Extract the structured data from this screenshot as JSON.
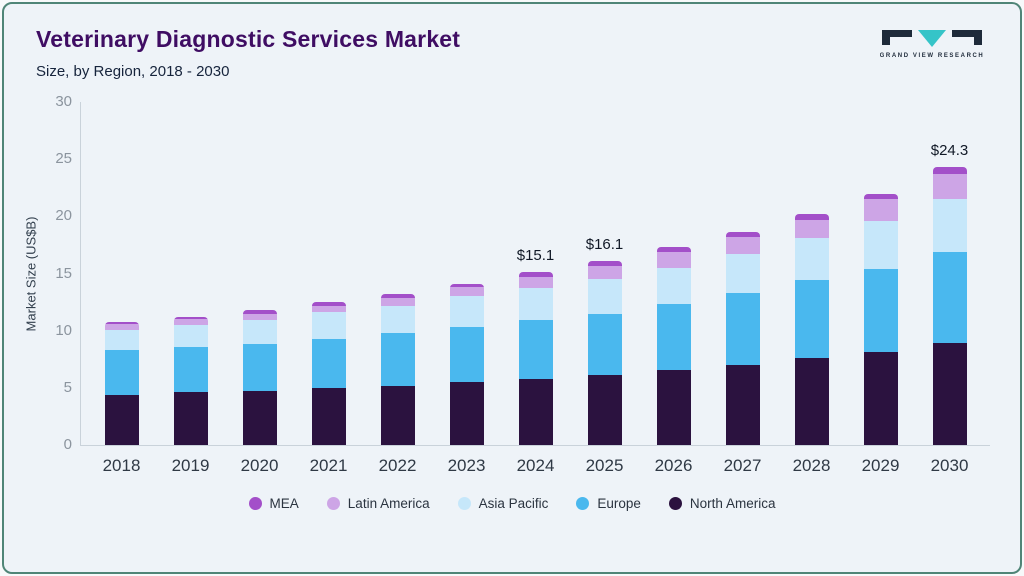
{
  "header": {
    "title": "Veterinary Diagnostic Services Market",
    "subtitle": "Size, by Region, 2018 - 2030",
    "logo_text": "GRAND VIEW RESEARCH"
  },
  "colors": {
    "frame_border": "#4f8577",
    "background": "#eef3f8",
    "title": "#3f0d63",
    "logo_dark": "#1e2a3a",
    "logo_teal": "#35c4c8"
  },
  "chart_data": {
    "type": "bar",
    "stacked": true,
    "title": "Veterinary Diagnostic Services Market",
    "subtitle": "Size, by Region, 2018 - 2030",
    "xlabel": "",
    "ylabel": "Market Size (US$B)",
    "ylim": [
      0,
      30
    ],
    "yticks": [
      0,
      5,
      10,
      15,
      20,
      25,
      30
    ],
    "grid": false,
    "legend_position": "bottom",
    "categories": [
      "2018",
      "2019",
      "2020",
      "2021",
      "2022",
      "2023",
      "2024",
      "2025",
      "2026",
      "2027",
      "2028",
      "2029",
      "2030"
    ],
    "series": [
      {
        "name": "North America",
        "color": "#2b123f",
        "values": [
          4.4,
          4.6,
          4.7,
          5.0,
          5.2,
          5.5,
          5.8,
          6.1,
          6.6,
          7.0,
          7.6,
          8.1,
          8.9
        ]
      },
      {
        "name": "Europe",
        "color": "#4ab8ee",
        "values": [
          3.9,
          4.0,
          4.1,
          4.3,
          4.6,
          4.8,
          5.1,
          5.4,
          5.7,
          6.3,
          6.8,
          7.3,
          8.0
        ]
      },
      {
        "name": "Asia Pacific",
        "color": "#c6e7fa",
        "values": [
          1.8,
          1.9,
          2.1,
          2.3,
          2.4,
          2.7,
          2.8,
          3.0,
          3.2,
          3.4,
          3.7,
          4.2,
          4.6
        ]
      },
      {
        "name": "Latin America",
        "color": "#cda5e6",
        "values": [
          0.5,
          0.5,
          0.6,
          0.6,
          0.7,
          0.8,
          1.0,
          1.2,
          1.4,
          1.5,
          1.6,
          1.9,
          2.2
        ]
      },
      {
        "name": "MEA",
        "color": "#a34fc9",
        "values": [
          0.2,
          0.2,
          0.3,
          0.3,
          0.3,
          0.3,
          0.4,
          0.4,
          0.4,
          0.4,
          0.5,
          0.5,
          0.6
        ]
      }
    ],
    "bar_labels": {
      "2024": "$15.1",
      "2025": "$16.1",
      "2030": "$24.3"
    },
    "totals": [
      10.8,
      11.2,
      11.8,
      12.5,
      13.2,
      14.1,
      15.1,
      16.1,
      17.3,
      18.6,
      20.2,
      22.0,
      24.3
    ]
  }
}
